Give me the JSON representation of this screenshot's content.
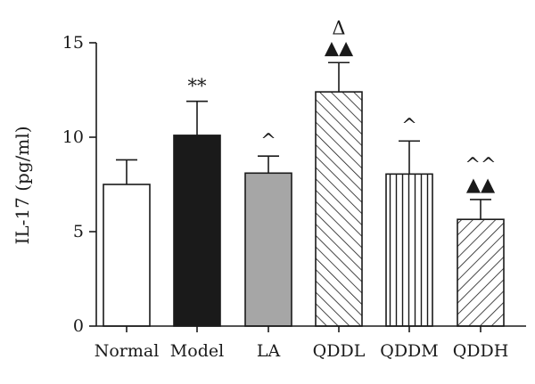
{
  "chart_data": {
    "type": "bar",
    "title": "",
    "xlabel": "",
    "ylabel": "IL-17 (pg/ml)",
    "ylim": [
      0,
      15
    ],
    "yticks": [
      0,
      5,
      10,
      15
    ],
    "grid": false,
    "legend": "none",
    "categories": [
      "Normal",
      "Model",
      "LA",
      "QDDL",
      "QDDM",
      "QDDH"
    ],
    "values": [
      7.5,
      10.1,
      8.1,
      12.4,
      8.05,
      5.65
    ],
    "errors": [
      1.3,
      1.8,
      0.9,
      1.55,
      1.75,
      1.05
    ],
    "fills": [
      "white",
      "black",
      "gray",
      "diagonal-hatch",
      "vertical-hatch",
      "diagonal-hatch-fine"
    ],
    "colors": {
      "black": "#1a1a1a",
      "gray": "#a6a6a6",
      "white": "#ffffff"
    },
    "annotations": [
      {
        "category": "Model",
        "lines": [
          "**"
        ]
      },
      {
        "category": "LA",
        "lines": [
          "^"
        ]
      },
      {
        "category": "QDDL",
        "lines": [
          "Δ",
          "▲▲"
        ]
      },
      {
        "category": "QDDM",
        "lines": [
          "^"
        ]
      },
      {
        "category": "QDDH",
        "lines": [
          "^^",
          "▲▲"
        ]
      }
    ]
  }
}
